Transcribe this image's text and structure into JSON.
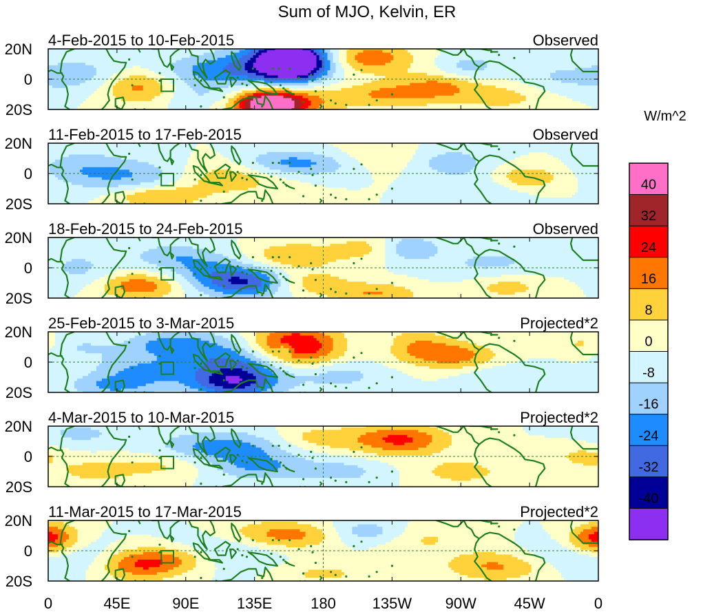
{
  "chart_data": {
    "type": "heatmap",
    "title": "Sum of MJO, Kelvin, ER",
    "colorbar": {
      "unit_label": "W/m^2",
      "tick_labels": [
        "40",
        "32",
        "24",
        "16",
        "8",
        "0",
        "-8",
        "-16",
        "-24",
        "-32",
        "-40"
      ],
      "colors": [
        "#ff6ec7",
        "#a0252a",
        "#ff0000",
        "#ff7700",
        "#ffd23c",
        "#ffffc8",
        "#d2f5ff",
        "#a0d2ff",
        "#1e8cff",
        "#4169e1",
        "#000096",
        "#8c2ff0"
      ]
    },
    "x_ticks": [
      "0",
      "45E",
      "90E",
      "135E",
      "180",
      "135W",
      "90W",
      "45W",
      "0"
    ],
    "y_ticks": [
      "20N",
      "0",
      "20S"
    ],
    "coastline_color": "#1e7f1e",
    "panels": [
      {
        "date_range": "4-Feb-2015 to 10-Feb-2015",
        "label": "Observed",
        "blobs": [
          [
            160,
            11,
            -46,
            14,
            8
          ],
          [
            155,
            12,
            -32,
            22,
            10
          ],
          [
            110,
            5,
            -20,
            28,
            8
          ],
          [
            60,
            -5,
            20,
            18,
            8
          ],
          [
            150,
            -15,
            30,
            25,
            8
          ],
          [
            145,
            -17,
            38,
            12,
            5
          ],
          [
            210,
            14,
            22,
            20,
            7
          ],
          [
            220,
            -10,
            16,
            20,
            6
          ],
          [
            255,
            -5,
            16,
            18,
            7
          ],
          [
            300,
            -10,
            12,
            25,
            8
          ],
          [
            20,
            3,
            -12,
            20,
            8
          ],
          [
            330,
            0,
            -10,
            25,
            8
          ],
          [
            275,
            8,
            -12,
            14,
            6
          ],
          [
            100,
            -12,
            -10,
            20,
            6
          ]
        ]
      },
      {
        "date_range": "11-Feb-2015 to 17-Feb-2015",
        "label": "Observed",
        "blobs": [
          [
            60,
            -2,
            -18,
            30,
            8
          ],
          [
            110,
            -3,
            16,
            30,
            8
          ],
          [
            70,
            -15,
            18,
            20,
            5
          ],
          [
            175,
            6,
            -14,
            25,
            6
          ],
          [
            260,
            8,
            -14,
            20,
            7
          ],
          [
            220,
            10,
            10,
            25,
            7
          ],
          [
            310,
            -3,
            18,
            18,
            6
          ],
          [
            20,
            5,
            -10,
            20,
            8
          ],
          [
            290,
            -8,
            -10,
            20,
            8
          ],
          [
            150,
            8,
            -10,
            20,
            6
          ]
        ]
      },
      {
        "date_range": "18-Feb-2015 to 24-Feb-2015",
        "label": "Observed",
        "blobs": [
          [
            130,
            -10,
            -30,
            20,
            7
          ],
          [
            60,
            -12,
            22,
            18,
            6
          ],
          [
            160,
            8,
            16,
            20,
            6
          ],
          [
            210,
            13,
            12,
            18,
            6
          ],
          [
            235,
            13,
            -18,
            14,
            6
          ],
          [
            170,
            -10,
            14,
            20,
            6
          ],
          [
            215,
            -17,
            16,
            20,
            5
          ],
          [
            290,
            3,
            -10,
            25,
            8
          ],
          [
            80,
            8,
            -12,
            20,
            6
          ],
          [
            20,
            0,
            -10,
            15,
            8
          ],
          [
            105,
            -2,
            -14,
            20,
            8
          ],
          [
            300,
            -12,
            12,
            18,
            6
          ]
        ]
      },
      {
        "date_range": "25-Feb-2015 to 3-Mar-2015",
        "label": "Projected*2",
        "blobs": [
          [
            160,
            10,
            38,
            22,
            10
          ],
          [
            155,
            8,
            -14,
            4,
            3
          ],
          [
            125,
            -2,
            -30,
            26,
            12
          ],
          [
            120,
            -14,
            -22,
            18,
            6
          ],
          [
            80,
            12,
            -18,
            20,
            6
          ],
          [
            60,
            -6,
            -16,
            22,
            8
          ],
          [
            230,
            12,
            20,
            22,
            7
          ],
          [
            265,
            4,
            20,
            20,
            6
          ],
          [
            215,
            12,
            -16,
            16,
            6
          ],
          [
            190,
            -8,
            -12,
            20,
            7
          ],
          [
            40,
            -16,
            -14,
            20,
            5
          ],
          [
            20,
            10,
            -8,
            18,
            6
          ],
          [
            300,
            -10,
            -8,
            20,
            6
          ],
          [
            350,
            12,
            10,
            12,
            5
          ]
        ]
      },
      {
        "date_range": "4-Mar-2015 to 10-Mar-2015",
        "label": "Projected*2",
        "blobs": [
          [
            230,
            11,
            26,
            22,
            7
          ],
          [
            115,
            5,
            -22,
            30,
            8
          ],
          [
            140,
            -8,
            -14,
            25,
            6
          ],
          [
            80,
            -5,
            12,
            25,
            6
          ],
          [
            270,
            -10,
            12,
            20,
            6
          ],
          [
            195,
            -10,
            -10,
            18,
            6
          ],
          [
            20,
            15,
            -10,
            20,
            6
          ],
          [
            175,
            12,
            12,
            20,
            6
          ],
          [
            350,
            0,
            10,
            15,
            6
          ],
          [
            30,
            -10,
            10,
            20,
            6
          ]
        ]
      },
      {
        "date_range": "11-Mar-2015 to 17-Mar-2015",
        "label": "Projected*2",
        "blobs": [
          [
            75,
            -5,
            20,
            25,
            6
          ],
          [
            60,
            -12,
            16,
            20,
            6
          ],
          [
            210,
            12,
            -16,
            18,
            6
          ],
          [
            295,
            -10,
            18,
            25,
            7
          ],
          [
            165,
            10,
            14,
            20,
            6
          ],
          [
            240,
            8,
            10,
            25,
            7
          ],
          [
            110,
            -2,
            -10,
            25,
            8
          ],
          [
            5,
            8,
            16,
            12,
            8
          ],
          [
            355,
            8,
            16,
            12,
            6
          ],
          [
            180,
            -15,
            10,
            20,
            5
          ],
          [
            20,
            -5,
            -8,
            20,
            8
          ],
          [
            140,
            12,
            10,
            20,
            6
          ],
          [
            330,
            -5,
            -8,
            20,
            8
          ]
        ]
      }
    ]
  }
}
